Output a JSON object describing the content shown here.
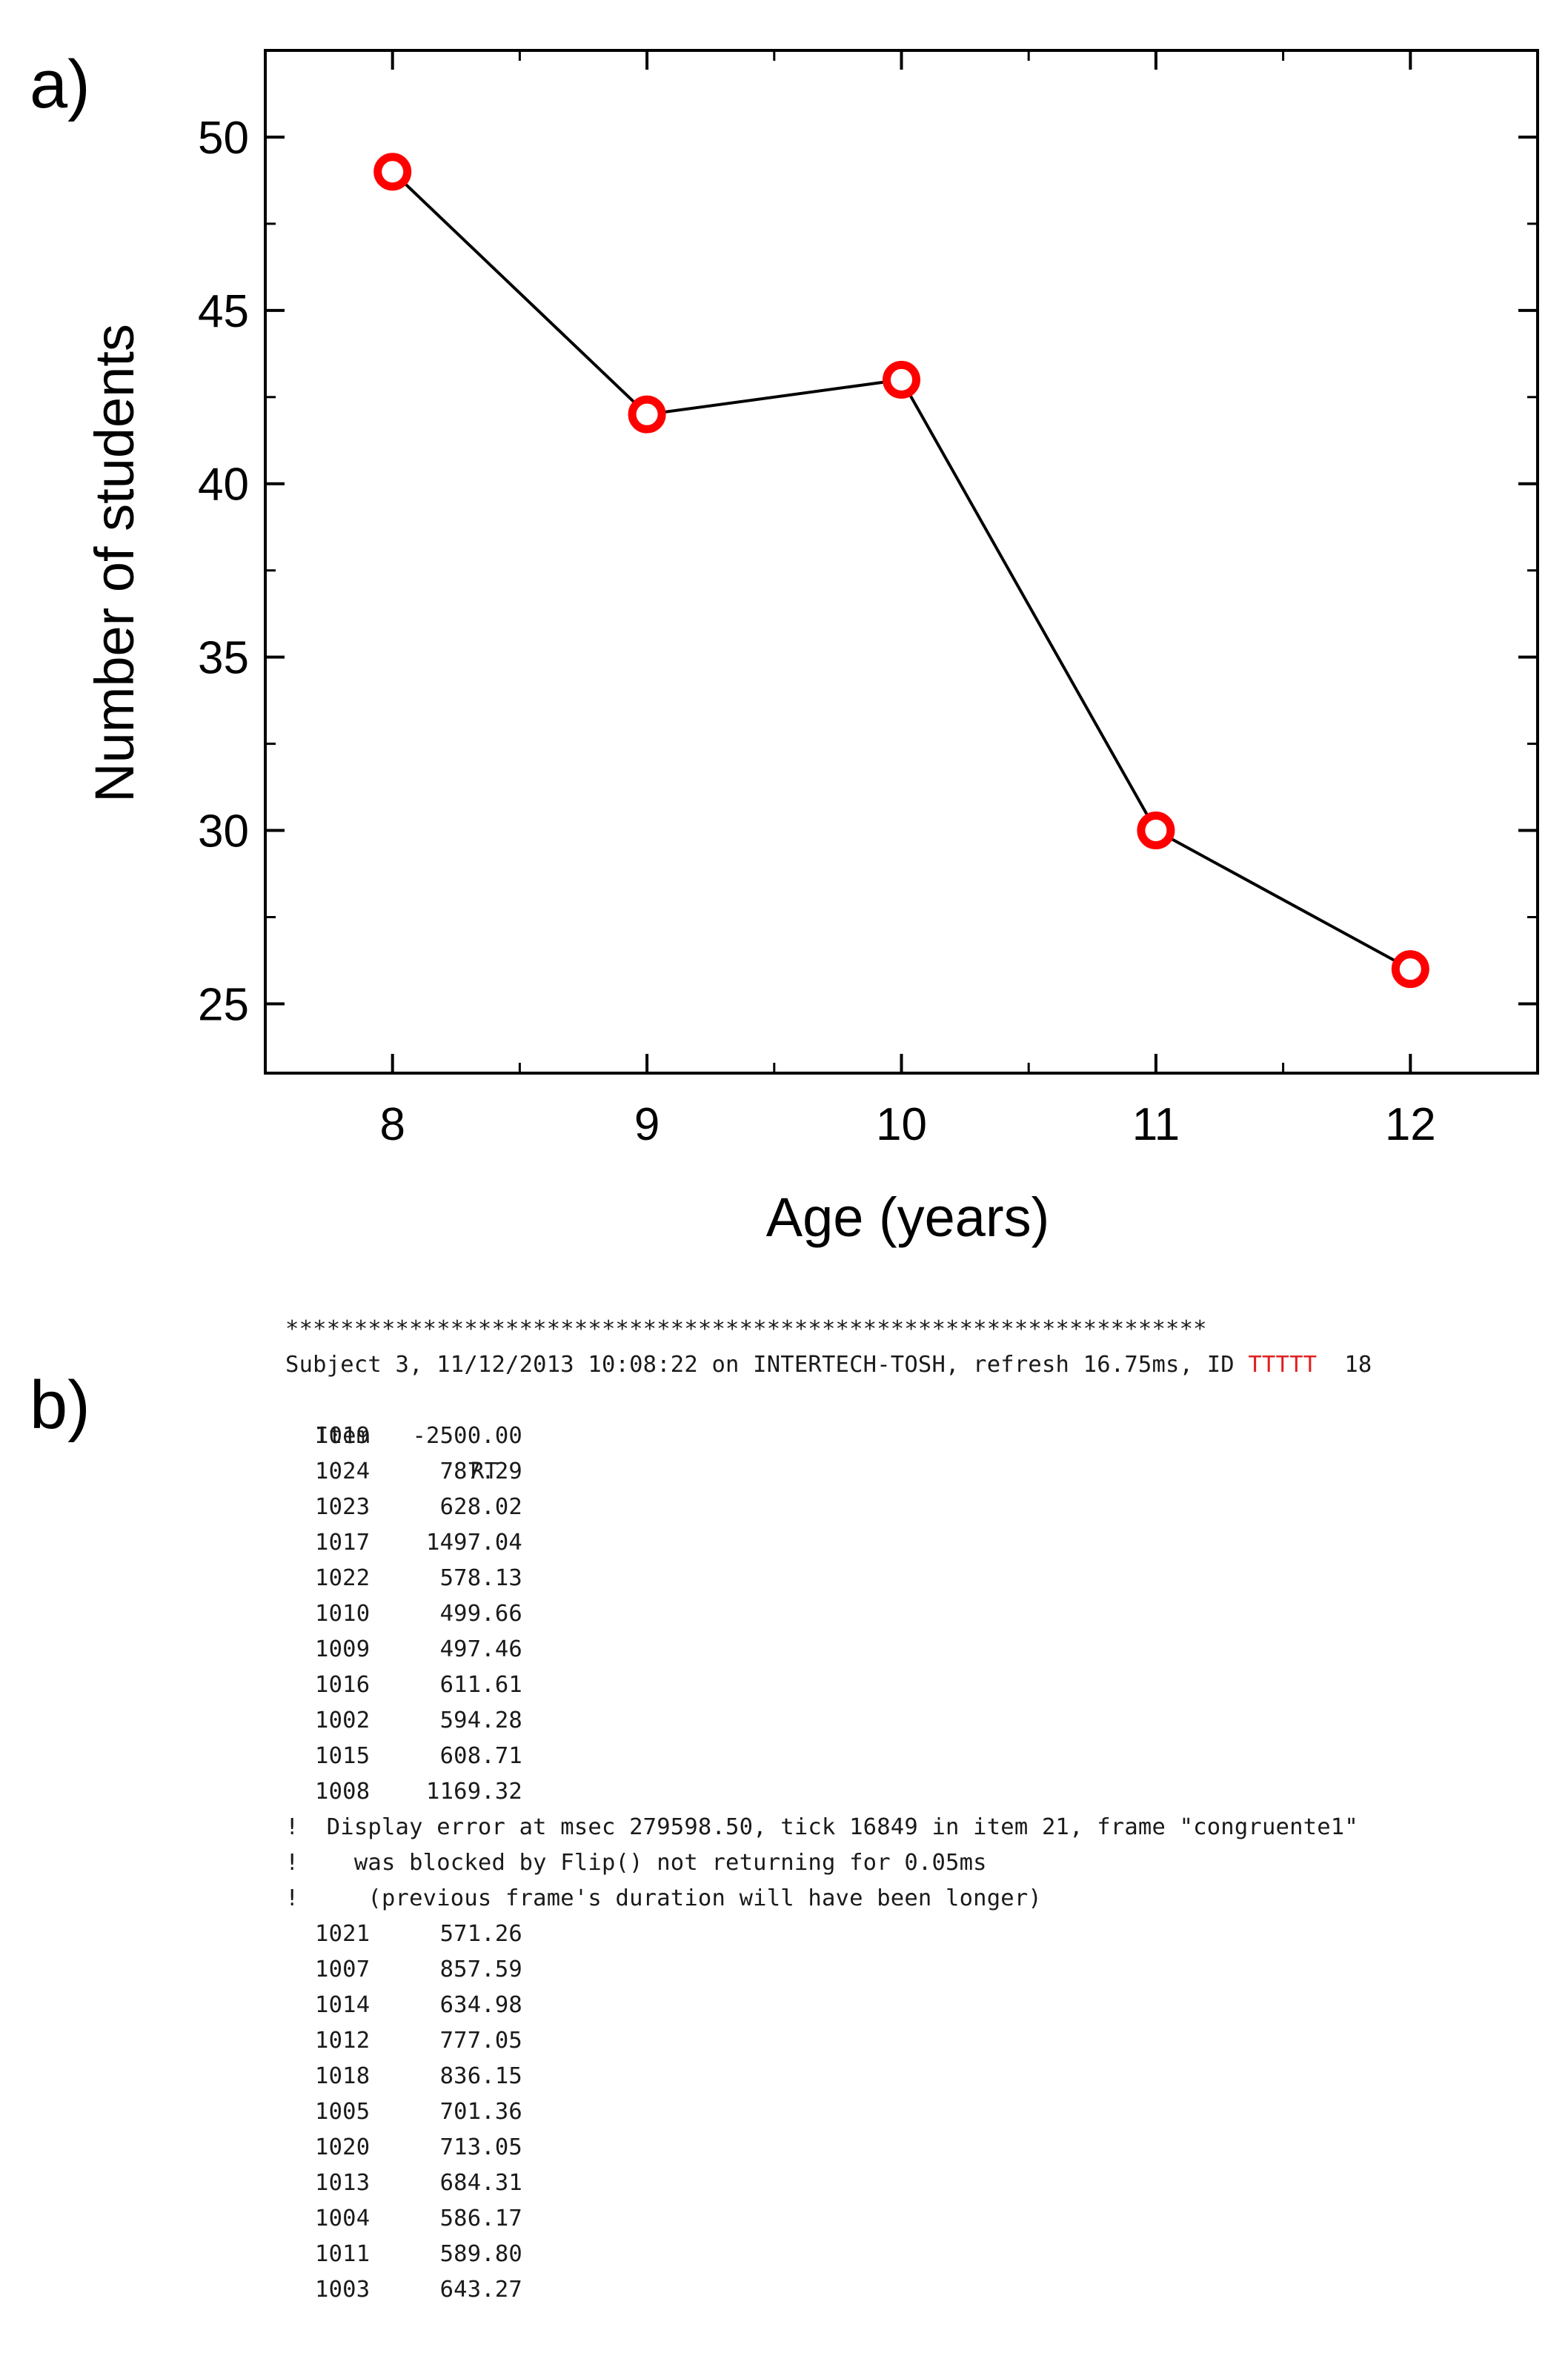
{
  "panels": {
    "a_label": "a)",
    "b_label": "b)"
  },
  "chart_data": {
    "type": "line",
    "title": "",
    "xlabel": "Age (years)",
    "ylabel": "Number of students",
    "x": [
      8,
      9,
      10,
      11,
      12
    ],
    "xticks": [
      "8",
      "9",
      "10",
      "11",
      "12"
    ],
    "yticks": [
      "25",
      "30",
      "35",
      "40",
      "45",
      "50"
    ],
    "ytick_values": [
      25,
      30,
      35,
      40,
      45,
      50
    ],
    "xlim": [
      7.5,
      12.5
    ],
    "ylim": [
      23,
      52.5
    ],
    "series": [
      {
        "values": [
          49,
          42,
          43,
          30,
          26
        ]
      }
    ],
    "grid": false,
    "line_color": "#000000",
    "marker_color": "#ff0000"
  },
  "log": {
    "stars": "*******************************************************************",
    "header_prefix": "Subject 3, 11/12/2013 10:08:22 on INTERTECH-TOSH, refresh 16.75ms, ID ",
    "header_id": "TTTTT",
    "header_suffix": "  18",
    "col_item": "Item",
    "col_rt": "RT",
    "rows_before": [
      {
        "item": "1019",
        "rt": "-2500.00"
      },
      {
        "item": "1024",
        "rt": "787.29"
      },
      {
        "item": "1023",
        "rt": "628.02"
      },
      {
        "item": "1017",
        "rt": "1497.04"
      },
      {
        "item": "1022",
        "rt": "578.13"
      },
      {
        "item": "1010",
        "rt": "499.66"
      },
      {
        "item": "1009",
        "rt": "497.46"
      },
      {
        "item": "1016",
        "rt": "611.61"
      },
      {
        "item": "1002",
        "rt": "594.28"
      },
      {
        "item": "1015",
        "rt": "608.71"
      },
      {
        "item": "1008",
        "rt": "1169.32"
      }
    ],
    "errors": [
      "!  Display error at msec 279598.50, tick 16849 in item 21, frame \"congruente1\"",
      "!    was blocked by Flip() not returning for 0.05ms",
      "!     (previous frame's duration will have been longer)"
    ],
    "rows_after": [
      {
        "item": "1021",
        "rt": "571.26"
      },
      {
        "item": "1007",
        "rt": "857.59"
      },
      {
        "item": "1014",
        "rt": "634.98"
      },
      {
        "item": "1012",
        "rt": "777.05"
      },
      {
        "item": "1018",
        "rt": "836.15"
      },
      {
        "item": "1005",
        "rt": "701.36"
      },
      {
        "item": "1020",
        "rt": "713.05"
      },
      {
        "item": "1013",
        "rt": "684.31"
      },
      {
        "item": "1004",
        "rt": "586.17"
      },
      {
        "item": "1011",
        "rt": "589.80"
      },
      {
        "item": "1003",
        "rt": "643.27"
      }
    ]
  }
}
